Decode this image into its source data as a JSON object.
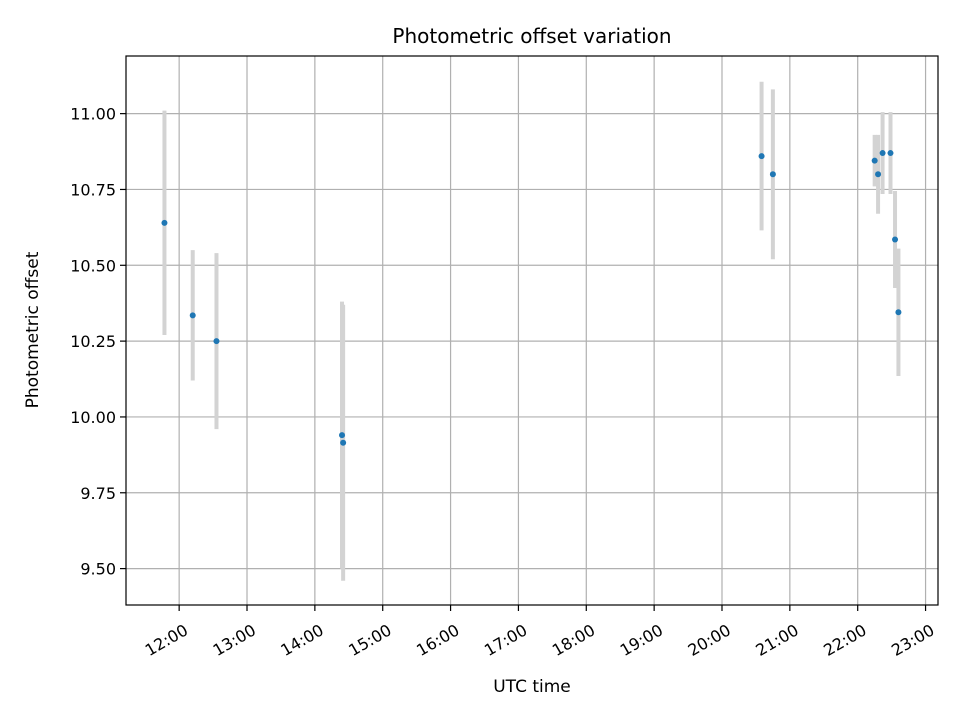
{
  "chart_data": {
    "type": "scatter",
    "title": "Photometric offset variation",
    "xlabel": "UTC time",
    "ylabel": "Photometric offset",
    "x_tick_labels": [
      "12:00",
      "13:00",
      "14:00",
      "15:00",
      "16:00",
      "17:00",
      "18:00",
      "19:00",
      "20:00",
      "21:00",
      "22:00",
      "23:00"
    ],
    "y_tick_labels": [
      "9.50",
      "9.75",
      "10.00",
      "10.25",
      "10.50",
      "10.75",
      "11.00"
    ],
    "x_range": [
      "11:13",
      "23:11"
    ],
    "ylim": [
      9.38,
      11.19
    ],
    "grid": true,
    "legend": "none",
    "marker_color": "#1f77b4",
    "errorbar_color": "#d3d3d3",
    "points": [
      {
        "x": "11:47",
        "y": 10.64,
        "yerr": 0.37
      },
      {
        "x": "12:12",
        "y": 10.335,
        "yerr": 0.215
      },
      {
        "x": "12:33",
        "y": 10.25,
        "yerr": 0.29
      },
      {
        "x": "14:24",
        "y": 9.94,
        "yerr": 0.44
      },
      {
        "x": "14:25",
        "y": 9.915,
        "yerr": 0.455
      },
      {
        "x": "20:35",
        "y": 10.86,
        "yerr": 0.245
      },
      {
        "x": "20:45",
        "y": 10.8,
        "yerr": 0.28
      },
      {
        "x": "22:15",
        "y": 10.845,
        "yerr": 0.085
      },
      {
        "x": "22:18",
        "y": 10.8,
        "yerr": 0.13
      },
      {
        "x": "22:22",
        "y": 10.87,
        "yerr": 0.135
      },
      {
        "x": "22:29",
        "y": 10.87,
        "yerr": 0.135
      },
      {
        "x": "22:33",
        "y": 10.585,
        "yerr": 0.16
      },
      {
        "x": "22:36",
        "y": 10.345,
        "yerr": 0.21
      }
    ]
  }
}
